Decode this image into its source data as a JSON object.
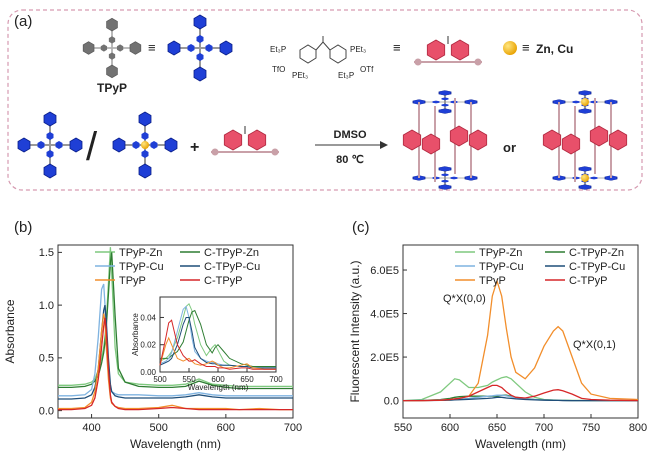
{
  "scheme": {
    "panel": "(a)",
    "tpyp_label": "TPyP",
    "equiv": "≡",
    "metal": "Zn, Cu",
    "plus": "+",
    "solvent": "DMSO",
    "temperature": "80 ℃",
    "or": "or",
    "slash": "/",
    "linker_labels": [
      "Et₃P",
      "PEt₃",
      "TfO",
      "PEt₃",
      "Et₃P",
      "OTf"
    ]
  },
  "chart_data": [
    {
      "type": "line",
      "panel": "(b)",
      "xlabel": "Wavelength (nm)",
      "ylabel": "Absorbance",
      "legend": "top",
      "x": [
        350,
        370,
        390,
        400,
        405,
        410,
        415,
        418,
        420,
        422,
        425,
        428,
        430,
        435,
        440,
        450,
        470,
        500,
        520,
        540,
        560,
        580,
        600,
        620,
        650,
        680,
        700
      ],
      "xlim": [
        350,
        700
      ],
      "xticks": [
        400,
        500,
        600,
        700
      ],
      "ylim": [
        -0.07,
        1.57
      ],
      "yticks": [
        {
          "value": 0,
          "label": "0.0"
        },
        {
          "value": 0.5,
          "label": "0.5"
        },
        {
          "value": 1,
          "label": "1.0"
        },
        {
          "value": 1.5,
          "label": "1.5"
        }
      ],
      "series": [
        {
          "name": "TPyP-Zn",
          "color": "#7fc97f",
          "values": [
            0.24,
            0.24,
            0.25,
            0.27,
            0.3,
            0.38,
            0.5,
            0.6,
            0.7,
            0.85,
            1.2,
            1.55,
            1.3,
            0.6,
            0.35,
            0.27,
            0.25,
            0.24,
            0.24,
            0.25,
            0.3,
            0.25,
            0.24,
            0.23,
            0.23,
            0.23,
            0.23
          ]
        },
        {
          "name": "C-TPyP-Zn",
          "color": "#2e7d32",
          "values": [
            0.22,
            0.22,
            0.23,
            0.25,
            0.28,
            0.33,
            0.45,
            0.55,
            0.65,
            0.8,
            1.1,
            1.4,
            1.5,
            0.9,
            0.4,
            0.27,
            0.23,
            0.22,
            0.22,
            0.23,
            0.28,
            0.24,
            0.22,
            0.21,
            0.21,
            0.21,
            0.21
          ]
        },
        {
          "name": "TPyP-Cu",
          "color": "#7fb3e0",
          "values": [
            0.14,
            0.14,
            0.15,
            0.2,
            0.35,
            0.7,
            1.15,
            1.2,
            1.0,
            0.7,
            0.35,
            0.22,
            0.18,
            0.16,
            0.15,
            0.15,
            0.15,
            0.14,
            0.14,
            0.15,
            0.17,
            0.15,
            0.14,
            0.14,
            0.14,
            0.14,
            0.14
          ]
        },
        {
          "name": "C-TPyP-Cu",
          "color": "#1f4e79",
          "values": [
            0.11,
            0.11,
            0.12,
            0.15,
            0.22,
            0.4,
            0.75,
            0.95,
            1.0,
            0.85,
            0.5,
            0.25,
            0.18,
            0.14,
            0.13,
            0.12,
            0.12,
            0.12,
            0.12,
            0.13,
            0.15,
            0.13,
            0.12,
            0.12,
            0.12,
            0.12,
            0.12
          ]
        },
        {
          "name": "TPyP",
          "color": "#f28e2b",
          "values": [
            0.02,
            0.02,
            0.03,
            0.08,
            0.18,
            0.4,
            0.75,
            0.92,
            0.85,
            0.6,
            0.3,
            0.12,
            0.07,
            0.04,
            0.03,
            0.02,
            0.02,
            0.03,
            0.05,
            0.02,
            0.02,
            0.02,
            0.02,
            0.01,
            0.02,
            0.01,
            0.01
          ]
        },
        {
          "name": "C-TPyP",
          "color": "#d62728",
          "values": [
            0.01,
            0.01,
            0.02,
            0.05,
            0.12,
            0.3,
            0.6,
            0.8,
            0.88,
            0.75,
            0.4,
            0.15,
            0.08,
            0.04,
            0.02,
            0.01,
            0.01,
            0.02,
            0.03,
            0.02,
            0.01,
            0.01,
            0.01,
            0.01,
            0.01,
            0.01,
            0.01
          ]
        }
      ]
    },
    {
      "type": "line",
      "xlabel": "Wavelength (nm)",
      "ylabel": "Absorbance",
      "x": [
        500,
        510,
        515,
        520,
        530,
        540,
        545,
        550,
        555,
        560,
        570,
        580,
        590,
        595,
        600,
        610,
        620,
        640,
        650,
        660,
        680,
        700
      ],
      "xlim": [
        500,
        700
      ],
      "xticks": [
        500,
        550,
        600,
        650,
        700
      ],
      "ylim": [
        0,
        0.055
      ],
      "yticks": [
        {
          "value": 0,
          "label": "0.00"
        },
        {
          "value": 0.02,
          "label": "0.02"
        },
        {
          "value": 0.04,
          "label": "0.04"
        }
      ],
      "series": [
        {
          "color": "#7fc97f",
          "values": [
            0.008,
            0.01,
            0.012,
            0.015,
            0.025,
            0.04,
            0.048,
            0.05,
            0.045,
            0.035,
            0.02,
            0.012,
            0.018,
            0.02,
            0.016,
            0.008,
            0.005,
            0.004,
            0.004,
            0.003,
            0.003,
            0.003
          ]
        },
        {
          "color": "#2e7d32",
          "values": [
            0.01,
            0.01,
            0.01,
            0.012,
            0.015,
            0.022,
            0.03,
            0.038,
            0.044,
            0.045,
            0.035,
            0.02,
            0.014,
            0.018,
            0.02,
            0.015,
            0.01,
            0.006,
            0.005,
            0.004,
            0.004,
            0.004
          ]
        },
        {
          "color": "#7fb3e0",
          "values": [
            0.006,
            0.008,
            0.01,
            0.014,
            0.03,
            0.046,
            0.048,
            0.04,
            0.025,
            0.015,
            0.01,
            0.008,
            0.007,
            0.007,
            0.006,
            0.005,
            0.005,
            0.004,
            0.004,
            0.003,
            0.003,
            0.003
          ]
        },
        {
          "color": "#1f4e79",
          "values": [
            0.005,
            0.007,
            0.008,
            0.01,
            0.02,
            0.035,
            0.04,
            0.04,
            0.03,
            0.018,
            0.01,
            0.007,
            0.006,
            0.006,
            0.005,
            0.005,
            0.005,
            0.004,
            0.004,
            0.003,
            0.003,
            0.003
          ]
        },
        {
          "color": "#f28e2b",
          "values": [
            0.005,
            0.02,
            0.025,
            0.02,
            0.01,
            0.008,
            0.009,
            0.01,
            0.008,
            0.006,
            0.005,
            0.006,
            0.008,
            0.007,
            0.005,
            0.003,
            0.003,
            0.005,
            0.006,
            0.003,
            0.002,
            0.002
          ]
        },
        {
          "color": "#d62728",
          "values": [
            0.005,
            0.025,
            0.036,
            0.038,
            0.02,
            0.012,
            0.01,
            0.008,
            0.008,
            0.009,
            0.006,
            0.004,
            0.004,
            0.004,
            0.003,
            0.003,
            0.002,
            0.003,
            0.003,
            0.002,
            0.002,
            0.002
          ]
        }
      ]
    },
    {
      "type": "line",
      "panel": "(c)",
      "xlabel": "Wavelength (nm)",
      "ylabel": "Fluorescent Intensity (a.u.)",
      "legend": "top",
      "annotations": [
        "Q*X(0,0)",
        "Q*X(0,1)"
      ],
      "x": [
        550,
        570,
        590,
        600,
        605,
        610,
        620,
        630,
        640,
        645,
        650,
        655,
        660,
        665,
        670,
        680,
        690,
        700,
        710,
        715,
        720,
        730,
        740,
        750,
        770,
        800
      ],
      "xlim": [
        550,
        800
      ],
      "xticks": [
        550,
        600,
        650,
        700,
        750,
        800
      ],
      "ylim": [
        -80000,
        715000
      ],
      "yticks": [
        {
          "value": 0,
          "label": "0.0"
        },
        {
          "value": 200000,
          "label": "2.0E5"
        },
        {
          "value": 400000,
          "label": "4.0E5"
        },
        {
          "value": 600000,
          "label": "6.0E5"
        }
      ],
      "series": [
        {
          "name": "TPyP-Zn",
          "color": "#7fc97f",
          "values": [
            0,
            5000,
            40000,
            80000,
            100000,
            95000,
            60000,
            60000,
            70000,
            85000,
            95000,
            105000,
            110000,
            100000,
            80000,
            40000,
            15000,
            5000,
            3000,
            2000,
            2000,
            1000,
            1000,
            0,
            0,
            0
          ]
        },
        {
          "name": "C-TPyP-Zn",
          "color": "#2e7d32",
          "values": [
            0,
            1000,
            5000,
            10000,
            15000,
            18000,
            20000,
            20000,
            20000,
            20000,
            20000,
            25000,
            25000,
            20000,
            15000,
            10000,
            5000,
            3000,
            2000,
            1000,
            1000,
            0,
            0,
            0,
            0,
            0
          ]
        },
        {
          "name": "TPyP-Cu",
          "color": "#7fb3e0",
          "values": [
            0,
            1000,
            3000,
            5000,
            6000,
            7000,
            10000,
            15000,
            20000,
            22000,
            25000,
            25000,
            22000,
            18000,
            12000,
            8000,
            5000,
            3000,
            2000,
            1000,
            1000,
            0,
            0,
            0,
            0,
            0
          ]
        },
        {
          "name": "C-TPyP-Cu",
          "color": "#1f4e79",
          "values": [
            0,
            0,
            1000,
            2000,
            3000,
            4000,
            6000,
            8000,
            10000,
            12000,
            15000,
            15000,
            12000,
            10000,
            8000,
            5000,
            3000,
            2000,
            1000,
            1000,
            0,
            0,
            0,
            0,
            0,
            0
          ]
        },
        {
          "name": "TPyP",
          "color": "#f28e2b",
          "values": [
            0,
            0,
            2000,
            5000,
            8000,
            10000,
            20000,
            80000,
            300000,
            480000,
            550000,
            480000,
            330000,
            200000,
            130000,
            100000,
            150000,
            250000,
            320000,
            340000,
            320000,
            200000,
            80000,
            30000,
            10000,
            5000
          ]
        },
        {
          "name": "C-TPyP",
          "color": "#d62728",
          "values": [
            0,
            0,
            2000,
            5000,
            8000,
            10000,
            20000,
            40000,
            60000,
            70000,
            70000,
            60000,
            40000,
            25000,
            15000,
            12000,
            20000,
            35000,
            48000,
            50000,
            45000,
            30000,
            10000,
            5000,
            2000,
            0
          ]
        }
      ]
    }
  ]
}
